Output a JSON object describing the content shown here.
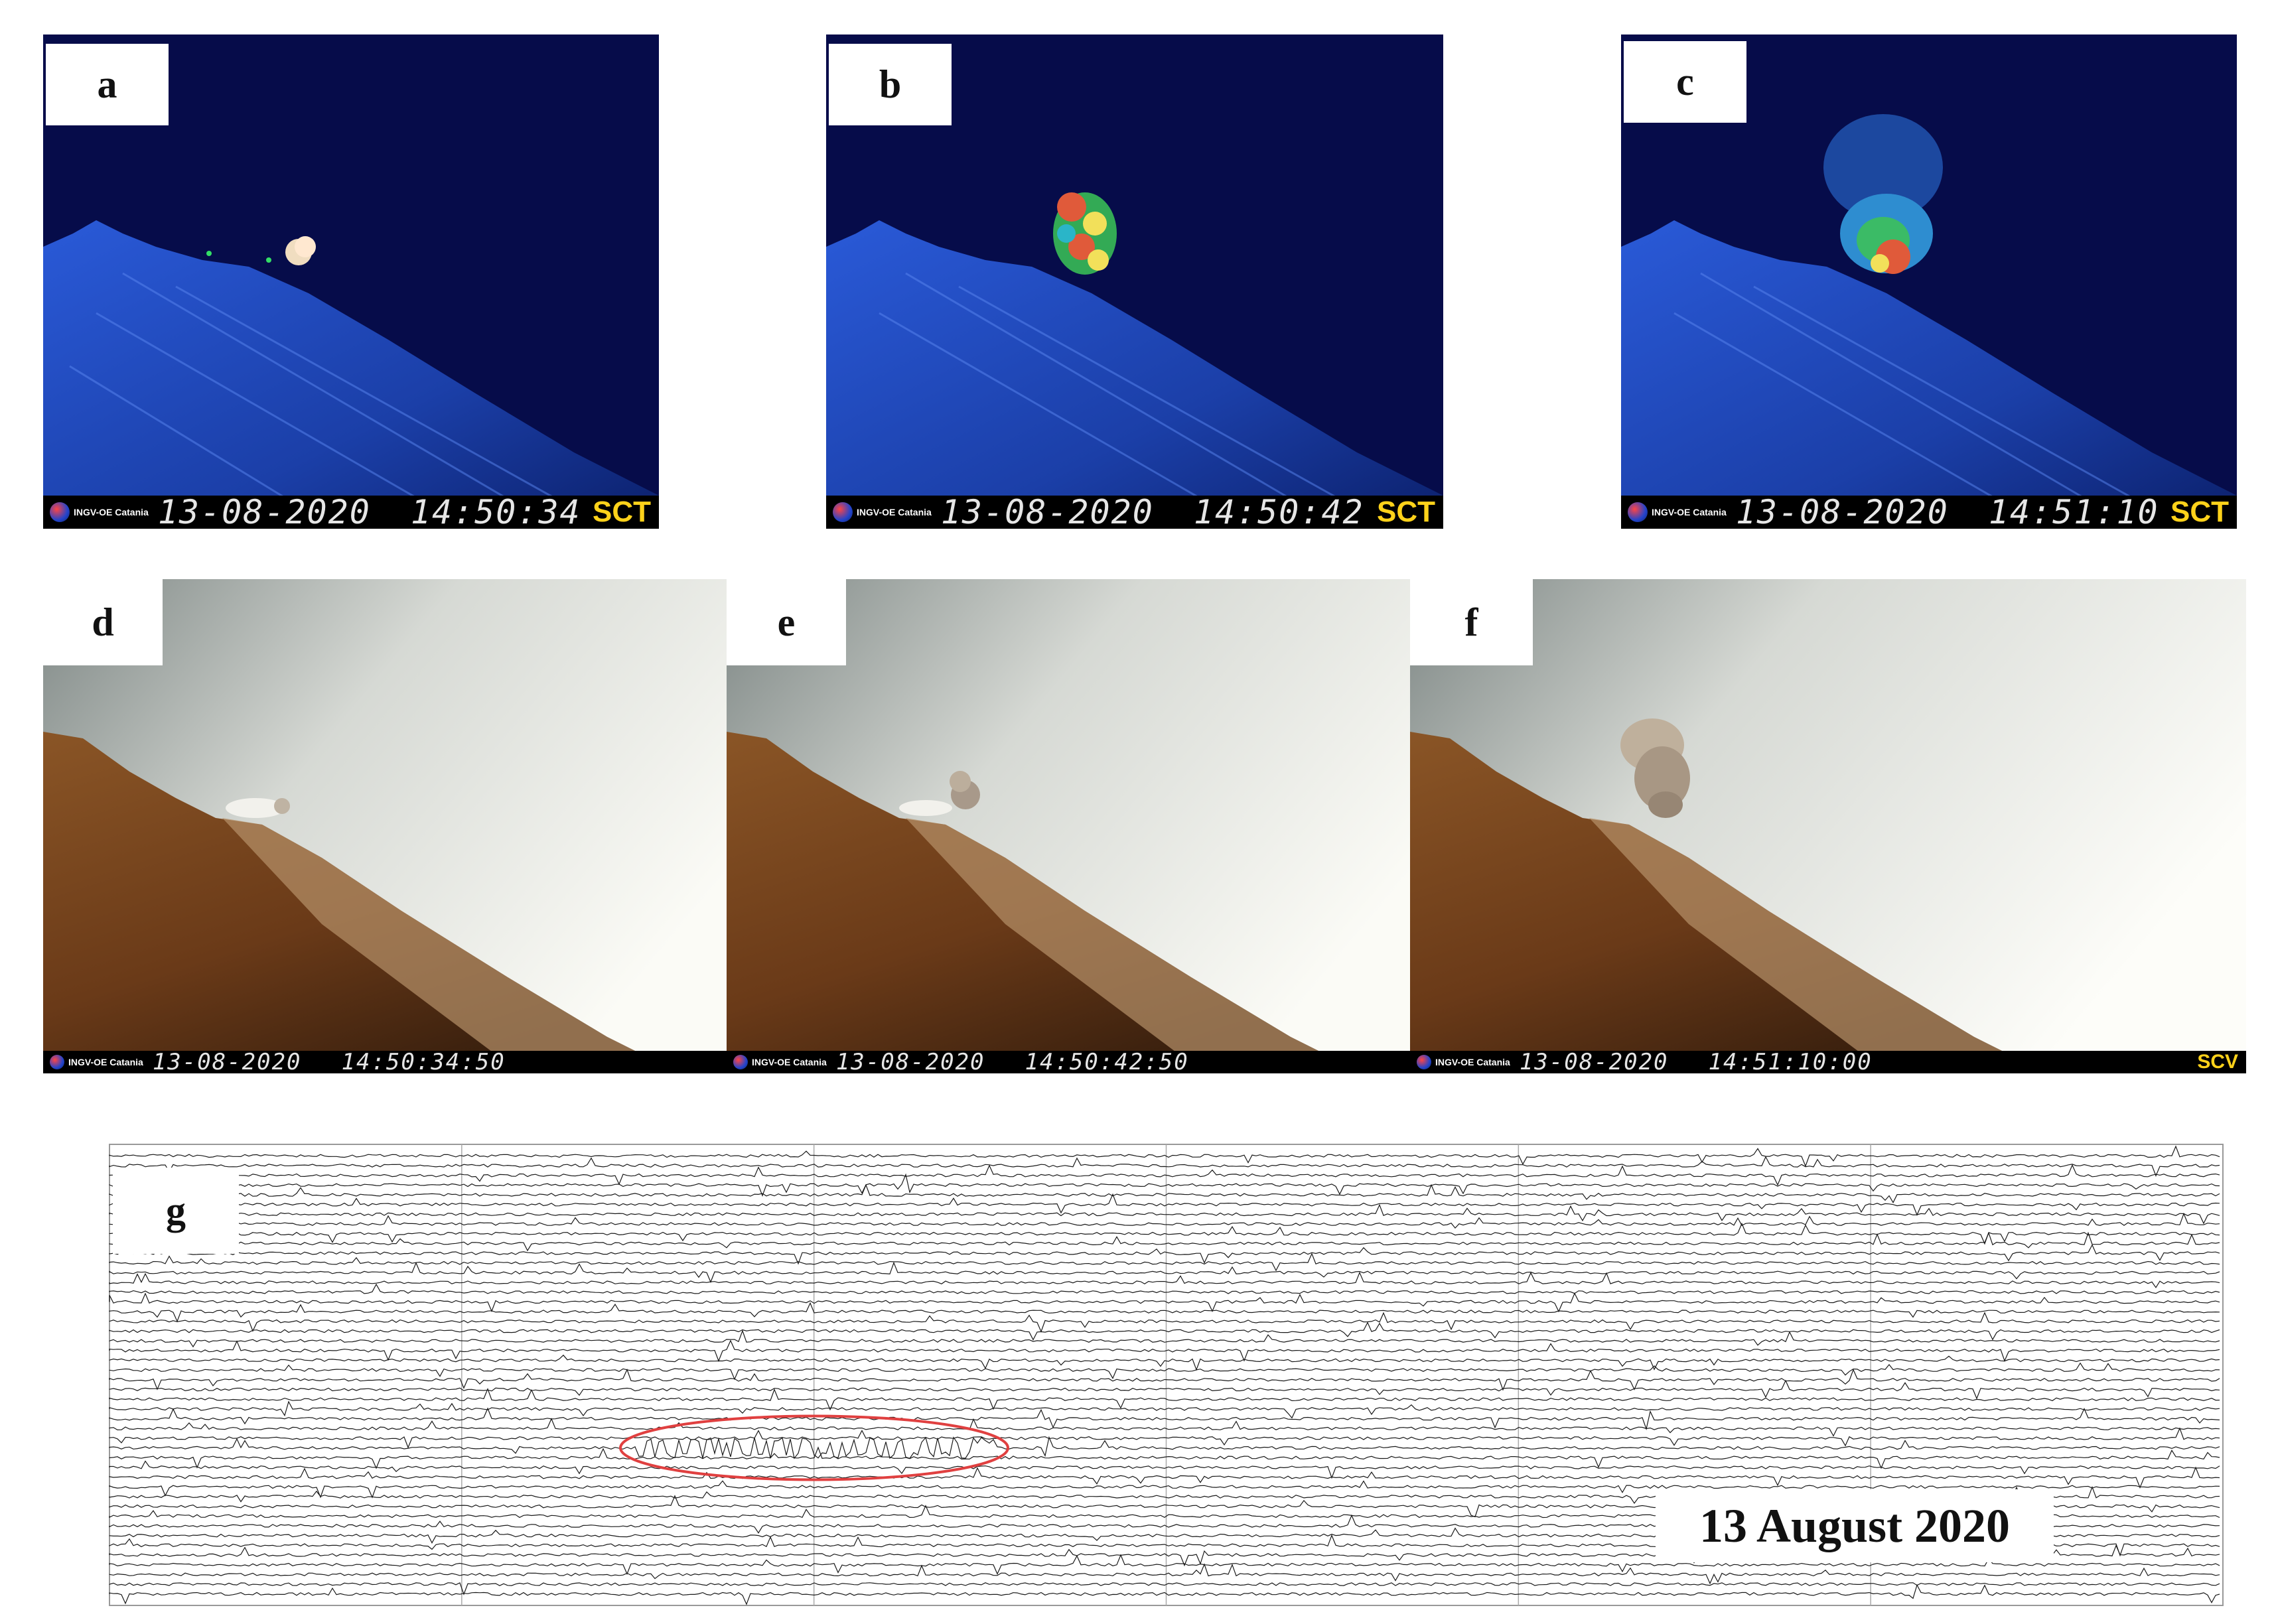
{
  "figure": {
    "panels_thermal": [
      {
        "letter": "a",
        "logo": "INGV-OE Catania",
        "date": "13-08-2020",
        "time": "14:50:34",
        "site": "SCT"
      },
      {
        "letter": "b",
        "logo": "INGV-OE Catania",
        "date": "13-08-2020",
        "time": "14:50:42",
        "site": "SCT"
      },
      {
        "letter": "c",
        "logo": "INGV-OE Catania",
        "date": "13-08-2020",
        "time": "14:51:10",
        "site": "SCT"
      }
    ],
    "panels_visible": [
      {
        "letter": "d",
        "logo": "INGV-OE Catania",
        "date": "13-08-2020",
        "time": "14:50:34:50",
        "site": ""
      },
      {
        "letter": "e",
        "logo": "INGV-OE Catania",
        "date": "13-08-2020",
        "time": "14:50:42:50",
        "site": ""
      },
      {
        "letter": "f",
        "logo": "INGV-OE Catania",
        "date": "13-08-2020",
        "time": "14:51:10:00",
        "site": "SCV"
      }
    ],
    "seismogram": {
      "letter": "g",
      "date_label": "13 August 2020",
      "highlight_color": "#e04040"
    }
  }
}
